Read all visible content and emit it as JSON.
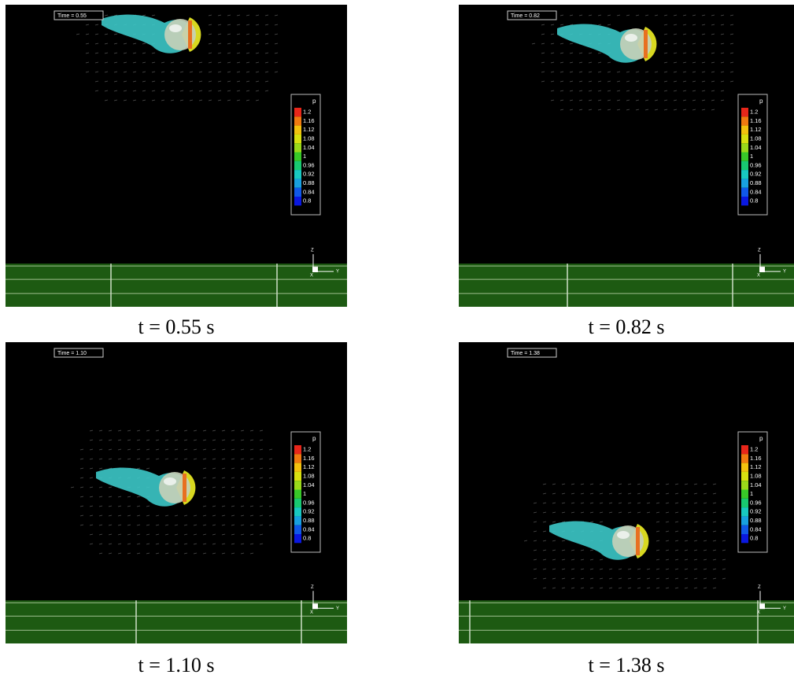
{
  "figure": {
    "panels": [
      {
        "time_label": "Time = 0.55",
        "caption": "t = 0.55 s"
      },
      {
        "time_label": "Time = 0.82",
        "caption": "t = 0.82 s"
      },
      {
        "time_label": "Time = 1.10",
        "caption": "t = 1.10 s"
      },
      {
        "time_label": "Time = 1.38",
        "caption": "t = 1.38 s"
      }
    ],
    "colorbar": {
      "title": "p",
      "levels": [
        "1.2",
        "1.16",
        "1.12",
        "1.08",
        "1.04",
        "1",
        "0.96",
        "0.92",
        "0.88",
        "0.84",
        "0.8"
      ],
      "colors": [
        "#e8261a",
        "#f07a10",
        "#f2c20e",
        "#d8e010",
        "#9ad81a",
        "#38c828",
        "#18c870",
        "#18c8c0",
        "#18a0e0",
        "#1058e8",
        "#0a18e0"
      ]
    },
    "triad": {
      "up": "Z",
      "right": "Y",
      "out": "X"
    }
  }
}
